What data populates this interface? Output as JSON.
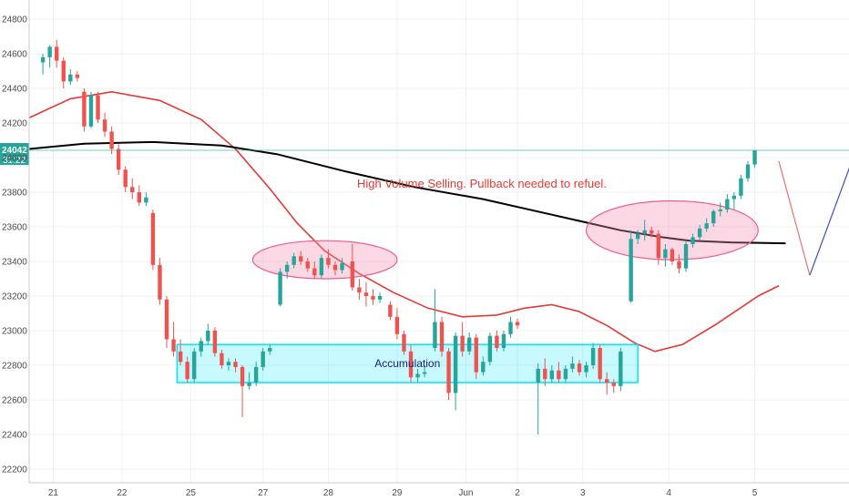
{
  "chart_data": {
    "type": "candlestick",
    "y_ticks": [
      22200,
      22400,
      22600,
      22800,
      23000,
      23200,
      23400,
      23600,
      23800,
      24000,
      24200,
      24400,
      24600,
      24800
    ],
    "ylim": [
      22150,
      24900
    ],
    "x_ticks": [
      {
        "label": "21",
        "t": 0.35
      },
      {
        "label": "22",
        "t": 1.35
      },
      {
        "label": "25",
        "t": 2.35
      },
      {
        "label": "27",
        "t": 3.4
      },
      {
        "label": "28",
        "t": 4.35
      },
      {
        "label": "29",
        "t": 5.35
      },
      {
        "label": "Jun",
        "t": 6.35
      },
      {
        "label": "2",
        "t": 7.1
      },
      {
        "label": "3",
        "t": 8.05
      },
      {
        "label": "4",
        "t": 9.3
      },
      {
        "label": "5",
        "t": 10.55
      }
    ],
    "xlim": [
      0,
      11.7
    ],
    "last_price_label": "24042",
    "countdown_label": "31:22",
    "last_price": 24042,
    "colors": {
      "up": "#26a69a",
      "down": "#ef5350",
      "ma_fast": "#e53935",
      "ma_slow": "#000000",
      "box": "#00e5ff",
      "ellipse": "#f48fb1",
      "arrow_up": "#3f51b5",
      "arrow_down": "#e57373",
      "price_line": "#26a69a"
    },
    "candles": [
      {
        "t": 0.2,
        "o": 24550,
        "h": 24600,
        "l": 24480,
        "c": 24580
      },
      {
        "t": 0.3,
        "o": 24580,
        "h": 24650,
        "l": 24520,
        "c": 24640
      },
      {
        "t": 0.4,
        "o": 24640,
        "h": 24680,
        "l": 24520,
        "c": 24560
      },
      {
        "t": 0.5,
        "o": 24560,
        "h": 24580,
        "l": 24400,
        "c": 24440
      },
      {
        "t": 0.6,
        "o": 24440,
        "h": 24510,
        "l": 24420,
        "c": 24480
      },
      {
        "t": 0.7,
        "o": 24480,
        "h": 24500,
        "l": 24440,
        "c": 24460
      },
      {
        "t": 0.8,
        "o": 24380,
        "h": 24400,
        "l": 24150,
        "c": 24180
      },
      {
        "t": 0.9,
        "o": 24180,
        "h": 24380,
        "l": 24170,
        "c": 24360
      },
      {
        "t": 1.0,
        "o": 24360,
        "h": 24380,
        "l": 24200,
        "c": 24220
      },
      {
        "t": 1.1,
        "o": 24220,
        "h": 24260,
        "l": 24120,
        "c": 24150
      },
      {
        "t": 1.2,
        "o": 24150,
        "h": 24180,
        "l": 24020,
        "c": 24050
      },
      {
        "t": 1.3,
        "o": 24050,
        "h": 24080,
        "l": 23900,
        "c": 23930
      },
      {
        "t": 1.4,
        "o": 23930,
        "h": 23950,
        "l": 23800,
        "c": 23830
      },
      {
        "t": 1.5,
        "o": 23830,
        "h": 23880,
        "l": 23760,
        "c": 23800
      },
      {
        "t": 1.6,
        "o": 23800,
        "h": 23840,
        "l": 23720,
        "c": 23740
      },
      {
        "t": 1.7,
        "o": 23740,
        "h": 23800,
        "l": 23720,
        "c": 23770
      },
      {
        "t": 1.8,
        "o": 23680,
        "h": 23700,
        "l": 23350,
        "c": 23380
      },
      {
        "t": 1.9,
        "o": 23380,
        "h": 23420,
        "l": 23150,
        "c": 23180
      },
      {
        "t": 2.0,
        "o": 23180,
        "h": 23200,
        "l": 22900,
        "c": 22950
      },
      {
        "t": 2.1,
        "o": 22950,
        "h": 23050,
        "l": 22850,
        "c": 22880
      },
      {
        "t": 2.2,
        "o": 22880,
        "h": 22950,
        "l": 22800,
        "c": 22820
      },
      {
        "t": 2.3,
        "o": 22820,
        "h": 22850,
        "l": 22700,
        "c": 22720
      },
      {
        "t": 2.4,
        "o": 22720,
        "h": 22900,
        "l": 22700,
        "c": 22880
      },
      {
        "t": 2.5,
        "o": 22880,
        "h": 22960,
        "l": 22850,
        "c": 22940
      },
      {
        "t": 2.6,
        "o": 22940,
        "h": 23040,
        "l": 22920,
        "c": 23000
      },
      {
        "t": 2.7,
        "o": 23000,
        "h": 23020,
        "l": 22850,
        "c": 22870
      },
      {
        "t": 2.8,
        "o": 22870,
        "h": 22890,
        "l": 22780,
        "c": 22800
      },
      {
        "t": 2.9,
        "o": 22800,
        "h": 22840,
        "l": 22770,
        "c": 22820
      },
      {
        "t": 3.0,
        "o": 22820,
        "h": 22840,
        "l": 22760,
        "c": 22790
      },
      {
        "t": 3.1,
        "o": 22790,
        "h": 22800,
        "l": 22500,
        "c": 22680
      },
      {
        "t": 3.2,
        "o": 22680,
        "h": 22760,
        "l": 22660,
        "c": 22700
      },
      {
        "t": 3.3,
        "o": 22700,
        "h": 22820,
        "l": 22680,
        "c": 22790
      },
      {
        "t": 3.4,
        "o": 22790,
        "h": 22900,
        "l": 22770,
        "c": 22880
      },
      {
        "t": 3.5,
        "o": 22880,
        "h": 22920,
        "l": 22860,
        "c": 22900
      },
      {
        "t": 3.65,
        "o": 23150,
        "h": 23360,
        "l": 23140,
        "c": 23340
      },
      {
        "t": 3.75,
        "o": 23340,
        "h": 23400,
        "l": 23300,
        "c": 23380
      },
      {
        "t": 3.85,
        "o": 23380,
        "h": 23450,
        "l": 23360,
        "c": 23430
      },
      {
        "t": 3.95,
        "o": 23430,
        "h": 23460,
        "l": 23380,
        "c": 23400
      },
      {
        "t": 4.05,
        "o": 23400,
        "h": 23420,
        "l": 23340,
        "c": 23360
      },
      {
        "t": 4.15,
        "o": 23360,
        "h": 23400,
        "l": 23300,
        "c": 23320
      },
      {
        "t": 4.25,
        "o": 23320,
        "h": 23440,
        "l": 23300,
        "c": 23420
      },
      {
        "t": 4.35,
        "o": 23420,
        "h": 23470,
        "l": 23360,
        "c": 23380
      },
      {
        "t": 4.45,
        "o": 23380,
        "h": 23400,
        "l": 23320,
        "c": 23350
      },
      {
        "t": 4.55,
        "o": 23350,
        "h": 23420,
        "l": 23330,
        "c": 23390
      },
      {
        "t": 4.7,
        "o": 23400,
        "h": 23500,
        "l": 23230,
        "c": 23250
      },
      {
        "t": 4.8,
        "o": 23250,
        "h": 23300,
        "l": 23180,
        "c": 23220
      },
      {
        "t": 4.9,
        "o": 23220,
        "h": 23280,
        "l": 23140,
        "c": 23200
      },
      {
        "t": 5.0,
        "o": 23200,
        "h": 23240,
        "l": 23150,
        "c": 23180
      },
      {
        "t": 5.1,
        "o": 23180,
        "h": 23220,
        "l": 23160,
        "c": 23200
      },
      {
        "t": 5.25,
        "o": 23150,
        "h": 23170,
        "l": 23060,
        "c": 23080
      },
      {
        "t": 5.35,
        "o": 23080,
        "h": 23130,
        "l": 22950,
        "c": 22980
      },
      {
        "t": 5.45,
        "o": 22980,
        "h": 23000,
        "l": 22860,
        "c": 22880
      },
      {
        "t": 5.55,
        "o": 22880,
        "h": 22920,
        "l": 22700,
        "c": 22730
      },
      {
        "t": 5.65,
        "o": 22730,
        "h": 22780,
        "l": 22700,
        "c": 22750
      },
      {
        "t": 5.75,
        "o": 22750,
        "h": 22800,
        "l": 22730,
        "c": 22760
      },
      {
        "t": 5.9,
        "o": 22900,
        "h": 23240,
        "l": 22880,
        "c": 23050
      },
      {
        "t": 6.0,
        "o": 23050,
        "h": 23080,
        "l": 22850,
        "c": 22880
      },
      {
        "t": 6.1,
        "o": 22880,
        "h": 22900,
        "l": 22600,
        "c": 22640
      },
      {
        "t": 6.2,
        "o": 22640,
        "h": 22990,
        "l": 22540,
        "c": 22970
      },
      {
        "t": 6.3,
        "o": 22970,
        "h": 23050,
        "l": 22850,
        "c": 22880
      },
      {
        "t": 6.4,
        "o": 22880,
        "h": 22990,
        "l": 22860,
        "c": 22960
      },
      {
        "t": 6.5,
        "o": 22960,
        "h": 22980,
        "l": 22720,
        "c": 22760
      },
      {
        "t": 6.6,
        "o": 22760,
        "h": 22850,
        "l": 22740,
        "c": 22820
      },
      {
        "t": 6.7,
        "o": 22820,
        "h": 22990,
        "l": 22800,
        "c": 22970
      },
      {
        "t": 6.8,
        "o": 22970,
        "h": 23000,
        "l": 22880,
        "c": 22900
      },
      {
        "t": 6.9,
        "o": 22900,
        "h": 23000,
        "l": 22880,
        "c": 22980
      },
      {
        "t": 7.0,
        "o": 22980,
        "h": 23080,
        "l": 22960,
        "c": 23050
      },
      {
        "t": 7.1,
        "o": 23050,
        "h": 23070,
        "l": 23010,
        "c": 23030
      },
      {
        "t": 7.4,
        "o": 22700,
        "h": 22810,
        "l": 22400,
        "c": 22780
      },
      {
        "t": 7.5,
        "o": 22780,
        "h": 22840,
        "l": 22680,
        "c": 22720
      },
      {
        "t": 7.6,
        "o": 22720,
        "h": 22800,
        "l": 22700,
        "c": 22770
      },
      {
        "t": 7.7,
        "o": 22770,
        "h": 22820,
        "l": 22700,
        "c": 22720
      },
      {
        "t": 7.8,
        "o": 22720,
        "h": 22800,
        "l": 22700,
        "c": 22780
      },
      {
        "t": 7.9,
        "o": 22780,
        "h": 22850,
        "l": 22760,
        "c": 22810
      },
      {
        "t": 8.0,
        "o": 22810,
        "h": 22830,
        "l": 22740,
        "c": 22760
      },
      {
        "t": 8.1,
        "o": 22760,
        "h": 22820,
        "l": 22730,
        "c": 22800
      },
      {
        "t": 8.2,
        "o": 22800,
        "h": 22930,
        "l": 22780,
        "c": 22900
      },
      {
        "t": 8.3,
        "o": 22900,
        "h": 22920,
        "l": 22700,
        "c": 22720
      },
      {
        "t": 8.4,
        "o": 22720,
        "h": 22760,
        "l": 22630,
        "c": 22700
      },
      {
        "t": 8.5,
        "o": 22700,
        "h": 22720,
        "l": 22640,
        "c": 22680
      },
      {
        "t": 8.6,
        "o": 22680,
        "h": 22900,
        "l": 22650,
        "c": 22880
      },
      {
        "t": 8.75,
        "o": 23170,
        "h": 23580,
        "l": 23160,
        "c": 23530
      },
      {
        "t": 8.85,
        "o": 23530,
        "h": 23580,
        "l": 23500,
        "c": 23560
      },
      {
        "t": 8.95,
        "o": 23560,
        "h": 23640,
        "l": 23520,
        "c": 23580
      },
      {
        "t": 9.05,
        "o": 23580,
        "h": 23600,
        "l": 23540,
        "c": 23560
      },
      {
        "t": 9.15,
        "o": 23560,
        "h": 23580,
        "l": 23380,
        "c": 23420
      },
      {
        "t": 9.25,
        "o": 23420,
        "h": 23500,
        "l": 23370,
        "c": 23470
      },
      {
        "t": 9.35,
        "o": 23470,
        "h": 23480,
        "l": 23380,
        "c": 23400
      },
      {
        "t": 9.45,
        "o": 23400,
        "h": 23440,
        "l": 23330,
        "c": 23360
      },
      {
        "t": 9.55,
        "o": 23360,
        "h": 23520,
        "l": 23340,
        "c": 23500
      },
      {
        "t": 9.65,
        "o": 23500,
        "h": 23560,
        "l": 23480,
        "c": 23540
      },
      {
        "t": 9.75,
        "o": 23540,
        "h": 23610,
        "l": 23520,
        "c": 23590
      },
      {
        "t": 9.85,
        "o": 23590,
        "h": 23650,
        "l": 23570,
        "c": 23620
      },
      {
        "t": 9.95,
        "o": 23620,
        "h": 23700,
        "l": 23600,
        "c": 23690
      },
      {
        "t": 10.05,
        "o": 23690,
        "h": 23740,
        "l": 23660,
        "c": 23700
      },
      {
        "t": 10.15,
        "o": 23700,
        "h": 23790,
        "l": 23680,
        "c": 23760
      },
      {
        "t": 10.25,
        "o": 23760,
        "h": 23800,
        "l": 23700,
        "c": 23780
      },
      {
        "t": 10.35,
        "o": 23780,
        "h": 23900,
        "l": 23760,
        "c": 23880
      },
      {
        "t": 10.45,
        "o": 23880,
        "h": 23980,
        "l": 23860,
        "c": 23960
      },
      {
        "t": 10.55,
        "o": 23960,
        "h": 24042,
        "l": 23940,
        "c": 24042
      }
    ],
    "ma_fast": [
      [
        0,
        24230
      ],
      [
        0.6,
        24340
      ],
      [
        1.2,
        24380
      ],
      [
        1.9,
        24330
      ],
      [
        2.5,
        24220
      ],
      [
        3.0,
        24050
      ],
      [
        3.5,
        23820
      ],
      [
        3.9,
        23620
      ],
      [
        4.3,
        23460
      ],
      [
        4.8,
        23330
      ],
      [
        5.3,
        23220
      ],
      [
        5.8,
        23130
      ],
      [
        6.3,
        23080
      ],
      [
        6.8,
        23090
      ],
      [
        7.2,
        23130
      ],
      [
        7.6,
        23150
      ],
      [
        8.0,
        23110
      ],
      [
        8.4,
        23030
      ],
      [
        8.8,
        22930
      ],
      [
        9.1,
        22880
      ],
      [
        9.5,
        22920
      ],
      [
        10.0,
        23040
      ],
      [
        10.6,
        23200
      ],
      [
        10.9,
        23260
      ]
    ],
    "ma_slow": [
      [
        0,
        24050
      ],
      [
        0.8,
        24080
      ],
      [
        1.8,
        24090
      ],
      [
        2.8,
        24070
      ],
      [
        3.6,
        24020
      ],
      [
        4.6,
        23920
      ],
      [
        5.6,
        23830
      ],
      [
        6.6,
        23760
      ],
      [
        7.6,
        23670
      ],
      [
        8.6,
        23580
      ],
      [
        9.2,
        23540
      ],
      [
        9.6,
        23520
      ],
      [
        10.2,
        23510
      ],
      [
        11.0,
        23505
      ]
    ],
    "accumulation_box": {
      "t0": 2.15,
      "t1": 8.85,
      "top": 22920,
      "bottom": 22700,
      "label": "Accumulation"
    },
    "ellipses": [
      {
        "t_center": 4.3,
        "v_center": 23410,
        "t_radius": 1.05,
        "v_radius": 110
      },
      {
        "t_center": 9.35,
        "v_center": 23580,
        "t_radius": 1.25,
        "v_radius": 170
      }
    ],
    "annotation": "High Volume Selling. Pullback needed to refuel.",
    "projection_down": [
      [
        10.9,
        23980
      ],
      [
        11.35,
        23320
      ]
    ],
    "projection_up": [
      [
        11.35,
        23320
      ],
      [
        12.4,
        24450
      ]
    ]
  }
}
